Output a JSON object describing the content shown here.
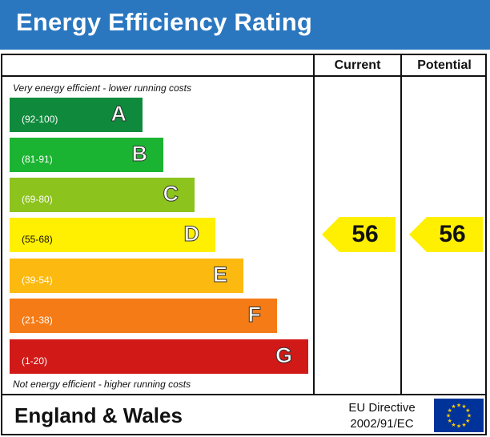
{
  "header": {
    "title": "Energy Efficiency Rating"
  },
  "columns": {
    "current": "Current",
    "potential": "Potential"
  },
  "notes": {
    "top": "Very energy efficient - lower running costs",
    "bottom": "Not energy efficient - higher running costs"
  },
  "bands": [
    {
      "range": "(92-100)",
      "letter": "A",
      "color": "#0f8a3c"
    },
    {
      "range": "(81-91)",
      "letter": "B",
      "color": "#1bb432"
    },
    {
      "range": "(69-80)",
      "letter": "C",
      "color": "#8cc31d"
    },
    {
      "range": "(55-68)",
      "letter": "D",
      "color": "#ffef00"
    },
    {
      "range": "(39-54)",
      "letter": "E",
      "color": "#fcb90f"
    },
    {
      "range": "(21-38)",
      "letter": "F",
      "color": "#f57b16"
    },
    {
      "range": "(1-20)",
      "letter": "G",
      "color": "#d11918"
    }
  ],
  "ratings": {
    "current": {
      "value": "56",
      "band": "D",
      "color": "#ffef00"
    },
    "potential": {
      "value": "56",
      "band": "D",
      "color": "#ffef00"
    }
  },
  "footer": {
    "region": "England & Wales",
    "directive_line1": "EU Directive",
    "directive_line2": "2002/91/EC",
    "flag_icon": "eu-flag-icon",
    "flag_color": "#003399",
    "star_color": "#ffcc00"
  }
}
